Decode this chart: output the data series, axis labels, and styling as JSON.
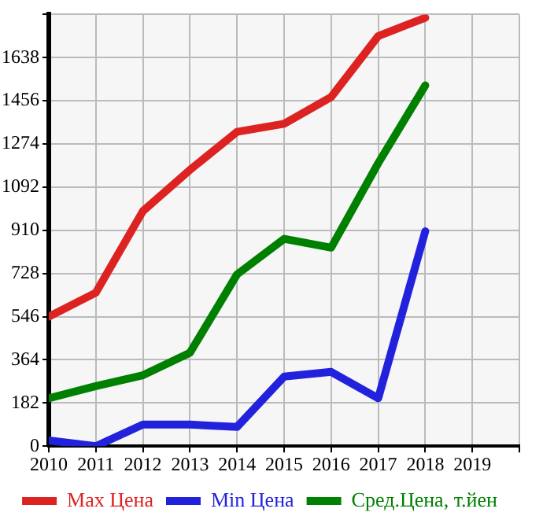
{
  "chart_data": {
    "type": "line",
    "x": [
      2010,
      2011,
      2012,
      2013,
      2014,
      2015,
      2016,
      2017,
      2018
    ],
    "series": [
      {
        "name": "Max Цена",
        "color": "#dd2222",
        "values": [
          546,
          647,
          991,
          1165,
          1325,
          1359,
          1472,
          1729,
          1806
        ]
      },
      {
        "name": "Min Цена",
        "color": "#2222dd",
        "values": [
          24,
          0,
          91,
          91,
          81,
          293,
          313,
          202,
          906
        ]
      },
      {
        "name": "Сред.Цена, т.йен",
        "color": "#008000",
        "values": [
          202,
          253,
          299,
          394,
          724,
          874,
          837,
          1193,
          1521
        ]
      }
    ],
    "xlim": [
      2010,
      2020
    ],
    "xticks": [
      2010,
      2011,
      2012,
      2013,
      2014,
      2015,
      2016,
      2017,
      2018,
      2019,
      {
        "value": 2020,
        "label": null
      }
    ],
    "ylim": [
      0,
      1820
    ],
    "yticks": [
      0,
      182,
      364,
      546,
      728,
      910,
      1092,
      1274,
      1456,
      1638,
      {
        "value": 1820,
        "label": null
      }
    ],
    "grid": true,
    "legend": "bottom",
    "marker": "none",
    "line_style": "solid"
  }
}
